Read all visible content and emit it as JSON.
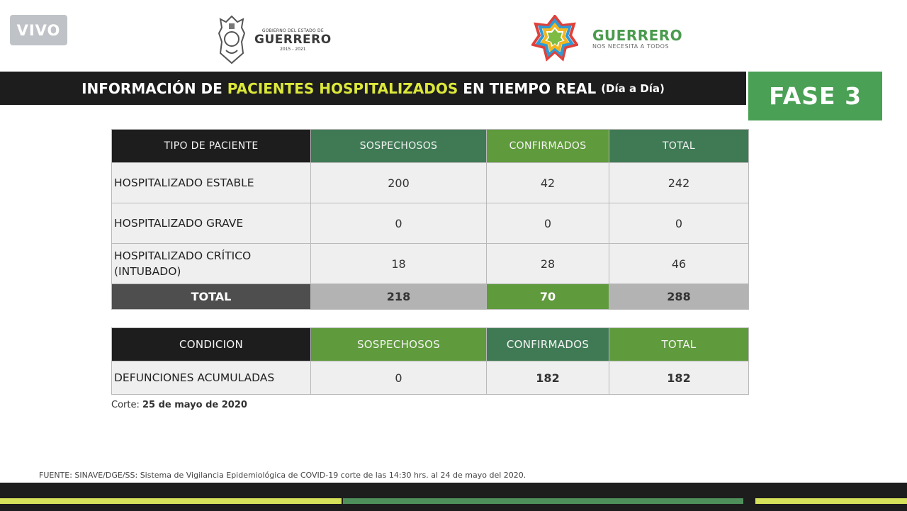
{
  "live_badge": "VIVO",
  "gov_logo": {
    "line1": "GOBIERNO DEL ESTADO DE",
    "name": "GUERRERO",
    "years": "2015 - 2021",
    "icon": "state-seal-icon"
  },
  "brand_logo": {
    "name": "GUERRERO",
    "tagline": "NOS NECESITA A TODOS",
    "icon": "multicolor-star-icon"
  },
  "title": {
    "pre": "INFORMACIÓN DE",
    "highlight": "PACIENTES HOSPITALIZADOS",
    "post": "EN TIEMPO REAL",
    "small": "(Día a Día)"
  },
  "phase_label": "FASE 3",
  "colors": {
    "dark": "#1d1d1d",
    "green_dark": "#3f7a55",
    "green_light": "#5f9a3c",
    "lime": "#d6e25a",
    "phase_green": "#4aa055"
  },
  "hosp_table": {
    "headers": [
      "TIPO DE PACIENTE",
      "SOSPECHOSOS",
      "CONFIRMADOS",
      "TOTAL"
    ],
    "rows": [
      {
        "label": "HOSPITALIZADO  ESTABLE",
        "sospechosos": "200",
        "confirmados": "42",
        "total": "242"
      },
      {
        "label": "HOSPITALIZADO GRAVE",
        "sospechosos": "0",
        "confirmados": "0",
        "total": "0"
      },
      {
        "label": "HOSPITALIZADO CRÍTICO (INTUBADO)",
        "sospechosos": "18",
        "confirmados": "28",
        "total": "46"
      }
    ],
    "total_row": {
      "label": "TOTAL",
      "sospechosos": "218",
      "confirmados": "70",
      "total": "288"
    }
  },
  "deaths_table": {
    "headers": [
      "CONDICION",
      "SOSPECHOSOS",
      "CONFIRMADOS",
      "TOTAL"
    ],
    "row": {
      "label": "DEFUNCIONES ACUMULADAS",
      "sospechosos": "0",
      "confirmados": "182",
      "total": "182"
    }
  },
  "cutoff": {
    "label": "Corte:",
    "date": "25 de mayo de 2020"
  },
  "source": "FUENTE: SINAVE/DGE/SS: Sistema de Vigilancia Epidemiológica de COVID-19 corte de las 14:30 hrs. al 24 de mayo del 2020."
}
